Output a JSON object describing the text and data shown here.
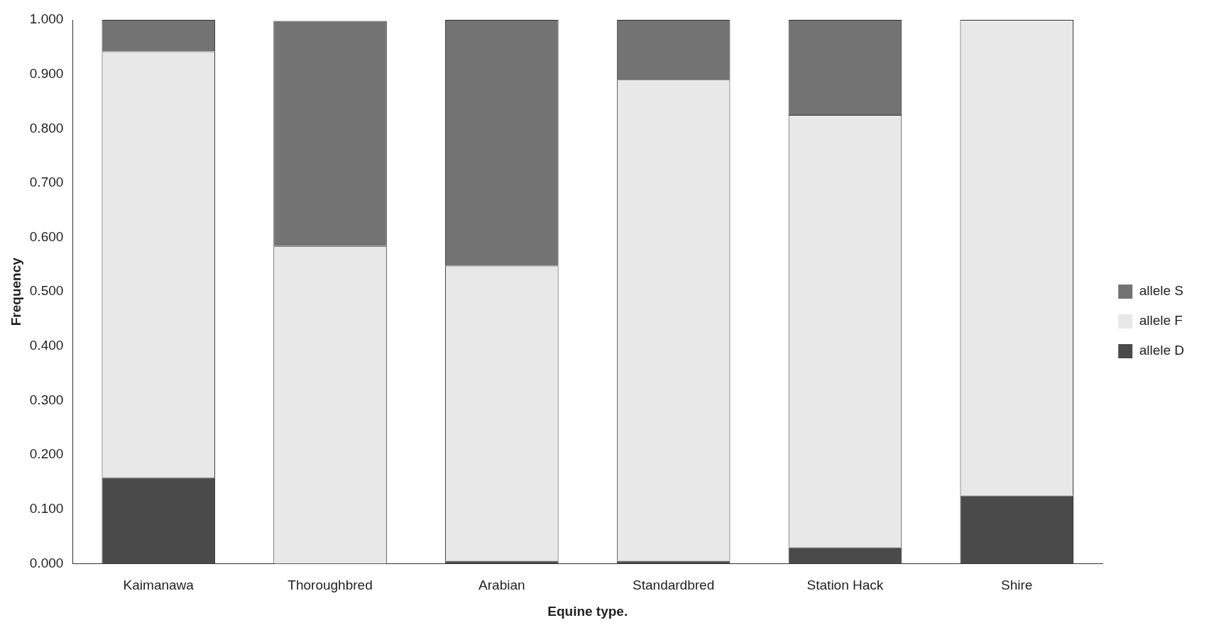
{
  "chart_data": {
    "type": "bar",
    "stacked": true,
    "xlabel": "Equine type.",
    "ylabel": "Frequency",
    "categories": [
      "Kaimanawa",
      "Thoroughbred",
      "Arabian",
      "Standardbred",
      "Station Hack",
      "Shire"
    ],
    "series": [
      {
        "name": "allele D",
        "color": "#4a4a4a",
        "values": [
          0.158,
          null,
          0.005,
          0.005,
          0.03,
          0.125
        ]
      },
      {
        "name": "allele F",
        "color": "#e8e8e8",
        "values": [
          0.784,
          0.584,
          0.543,
          0.885,
          0.795,
          0.875
        ]
      },
      {
        "name": "allele S",
        "color": "#737373",
        "values": [
          0.058,
          0.414,
          0.452,
          0.11,
          0.175,
          0
        ]
      }
    ],
    "ylim": [
      0,
      1
    ],
    "yticks": [
      {
        "value": 0,
        "label": "0.000"
      },
      {
        "value": 0.1,
        "label": "0.100"
      },
      {
        "value": 0.2,
        "label": "0.200"
      },
      {
        "value": 0.3,
        "label": "0.300"
      },
      {
        "value": 0.4,
        "label": "0.400"
      },
      {
        "value": 0.5,
        "label": "0.500"
      },
      {
        "value": 0.6,
        "label": "0.600"
      },
      {
        "value": 0.7,
        "label": "0.700"
      },
      {
        "value": 0.8,
        "label": "0.800"
      },
      {
        "value": 0.9,
        "label": "0.900"
      },
      {
        "value": 1,
        "label": "1.000"
      }
    ],
    "grid": false,
    "legend": "right"
  }
}
